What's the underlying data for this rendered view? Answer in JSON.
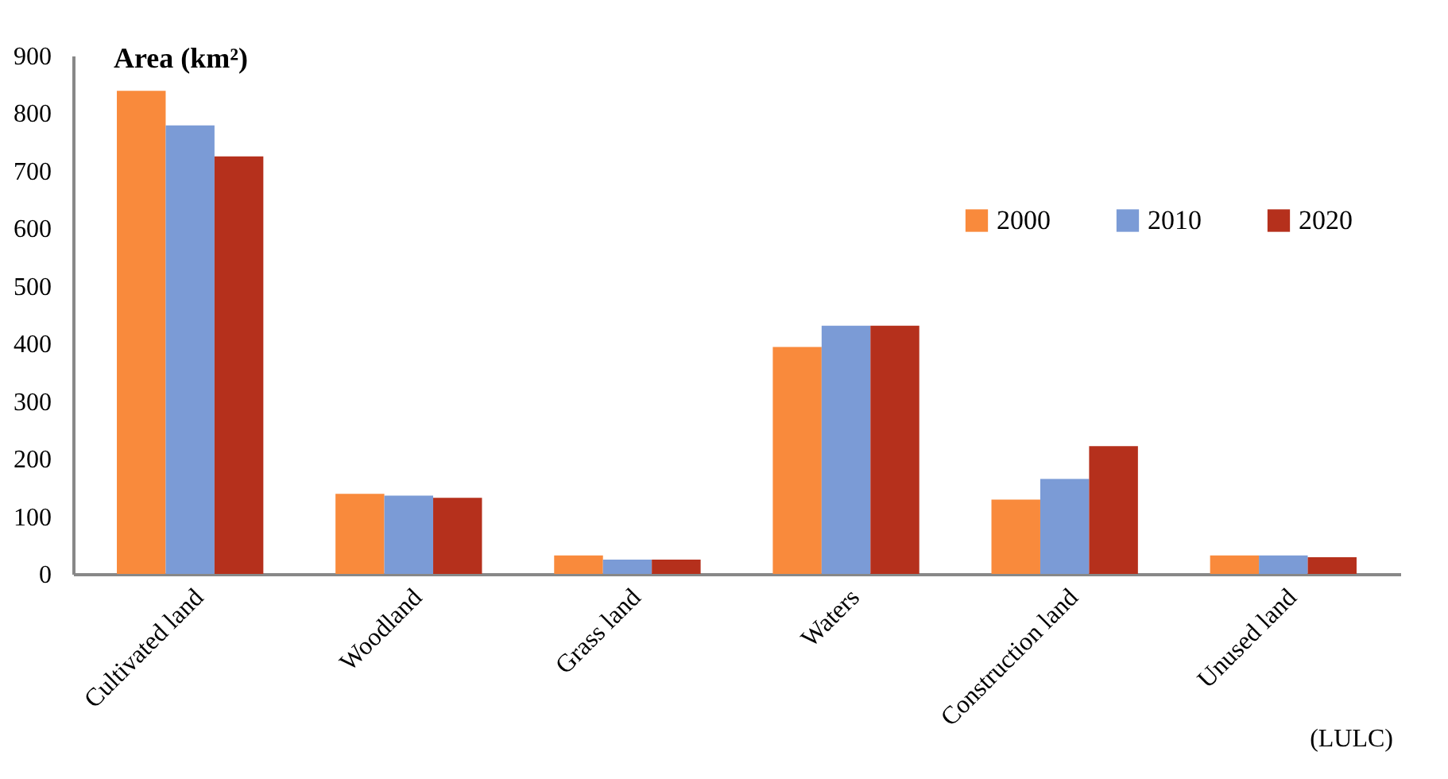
{
  "chart_data": {
    "type": "bar",
    "ylabel": "Area (km²)",
    "xlabel": "(LULC)",
    "categories": [
      "Cultivated land",
      "Woodland",
      "Grass  land",
      "Waters",
      "Construction land",
      "Unused land"
    ],
    "series": [
      {
        "name": "2000",
        "color": "#f98a3c",
        "values": [
          839,
          139,
          32,
          394,
          129,
          32
        ]
      },
      {
        "name": "2010",
        "color": "#7b9bd6",
        "values": [
          779,
          136,
          25,
          431,
          165,
          32
        ]
      },
      {
        "name": "2020",
        "color": "#b5301c",
        "values": [
          725,
          132,
          25,
          431,
          222,
          29
        ]
      }
    ],
    "ylim": [
      0,
      900
    ],
    "yticks": [
      0,
      100,
      200,
      300,
      400,
      500,
      600,
      700,
      800,
      900
    ],
    "grid": false,
    "legend": "top right"
  }
}
